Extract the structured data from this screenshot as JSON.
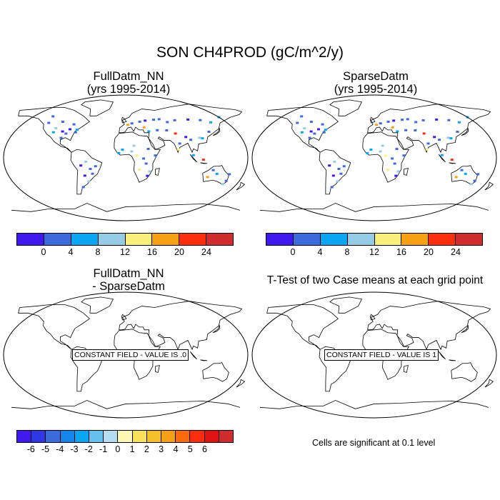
{
  "title": "SON CH4PROD (gC/m^2/y)",
  "panels": [
    {
      "title_line1": "FullDatm_NN",
      "title_line2": "(yrs 1995-2014)"
    },
    {
      "title_line1": "SparseDatm",
      "title_line2": "(yrs 1995-2014)"
    },
    {
      "title_line1": "FullDatm_NN",
      "title_line2": "- SparseDatm",
      "field_label": "CONSTANT FIELD - VALUE IS .0"
    },
    {
      "title_line1": "T-Test of two Case means at each grid point",
      "field_label": "CONSTANT FIELD - VALUE IS 1"
    }
  ],
  "colorbar_top": {
    "colors": [
      "#4019ee",
      "#3d6bdc",
      "#0aa6f2",
      "#96cbe6",
      "#f8f07a",
      "#f6a115",
      "#fa2d0c",
      "#cf2d2d"
    ],
    "ticks": [
      "0",
      "4",
      "8",
      "12",
      "16",
      "20",
      "24"
    ]
  },
  "colorbar_diff": {
    "colors": [
      "#4019ee",
      "#2f36e4",
      "#3d6bdc",
      "#1384ea",
      "#0aa6f2",
      "#66c0ee",
      "#b4dcf2",
      "#fcf8b4",
      "#f8e25c",
      "#f6c02a",
      "#f6a115",
      "#fa6a0e",
      "#fa2d0c",
      "#e01212",
      "#cf2d2d"
    ],
    "ticks": [
      "-6",
      "-5",
      "-4",
      "-3",
      "-2",
      "-1",
      "0",
      "1",
      "2",
      "3",
      "4",
      "5",
      "6"
    ]
  },
  "note": "Cells are significant at 0.1 level"
}
